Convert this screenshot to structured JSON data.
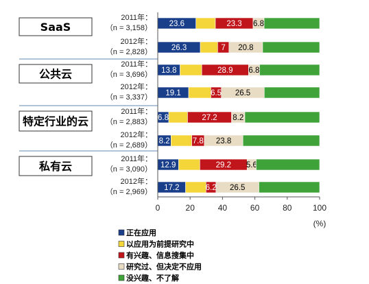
{
  "chart_data": {
    "type": "bar",
    "orientation": "horizontal",
    "stacked": true,
    "groups": [
      "SaaS",
      "公共云",
      "特定行业的云",
      "私有云"
    ],
    "year_label_suffix": "年：",
    "rows": [
      {
        "group": "SaaS",
        "year": "2011",
        "n": "（n = 3,158）",
        "values": [
          23.6,
          12.0,
          23.3,
          6.8,
          34.3
        ]
      },
      {
        "group": "SaaS",
        "year": "2012",
        "n": "（n = 2,828）",
        "values": [
          26.3,
          10.7,
          7.0,
          20.8,
          35.2
        ]
      },
      {
        "group": "公共云",
        "year": "2011",
        "n": "（n = 3,696）",
        "values": [
          13.8,
          13.4,
          28.9,
          6.8,
          37.1
        ]
      },
      {
        "group": "公共云",
        "year": "2012",
        "n": "（n = 3,337）",
        "values": [
          19.1,
          13.7,
          6.5,
          26.5,
          34.2
        ]
      },
      {
        "group": "特定行业的云",
        "year": "2011",
        "n": "（n = 2,883）",
        "values": [
          6.8,
          11.6,
          27.2,
          8.2,
          46.2
        ]
      },
      {
        "group": "特定行业的云",
        "year": "2012",
        "n": "（n = 2,689）",
        "values": [
          8.2,
          12.8,
          7.8,
          23.8,
          47.4
        ]
      },
      {
        "group": "私有云",
        "year": "2011",
        "n": "（n = 3,090）",
        "values": [
          12.9,
          13.1,
          29.2,
          5.6,
          39.2
        ]
      },
      {
        "group": "私有云",
        "year": "2012",
        "n": "（n = 2,969）",
        "values": [
          17.2,
          12.6,
          6.2,
          26.5,
          37.5
        ]
      }
    ],
    "labeled_segments": [
      [
        true,
        false,
        true,
        true,
        false
      ],
      [
        true,
        false,
        true,
        true,
        false
      ],
      [
        true,
        false,
        true,
        true,
        false
      ],
      [
        true,
        false,
        true,
        true,
        false
      ],
      [
        true,
        false,
        true,
        true,
        false
      ],
      [
        true,
        false,
        true,
        true,
        false
      ],
      [
        true,
        false,
        true,
        true,
        false
      ],
      [
        true,
        false,
        true,
        true,
        false
      ]
    ],
    "series": [
      {
        "name": "正在应用",
        "color": "#1a3f8a",
        "text_color": "#ffffff"
      },
      {
        "name": "以应用为前提研究中",
        "color": "#f4d63a",
        "text_color": "#000000"
      },
      {
        "name": "有兴趣、信息搜集中",
        "color": "#c0151b",
        "text_color": "#ffffff"
      },
      {
        "name": "研究过、但决定不应用",
        "color": "#e8dcc4",
        "text_color": "#000000"
      },
      {
        "name": "没兴趣、不了解",
        "color": "#3fa33a",
        "text_color": "#ffffff"
      }
    ],
    "x_ticks": [
      "0",
      "20",
      "40",
      "60",
      "80",
      "100"
    ],
    "xlim": [
      0,
      100
    ],
    "unit": "(%)",
    "grid": false,
    "legend_position": "bottom-left"
  }
}
